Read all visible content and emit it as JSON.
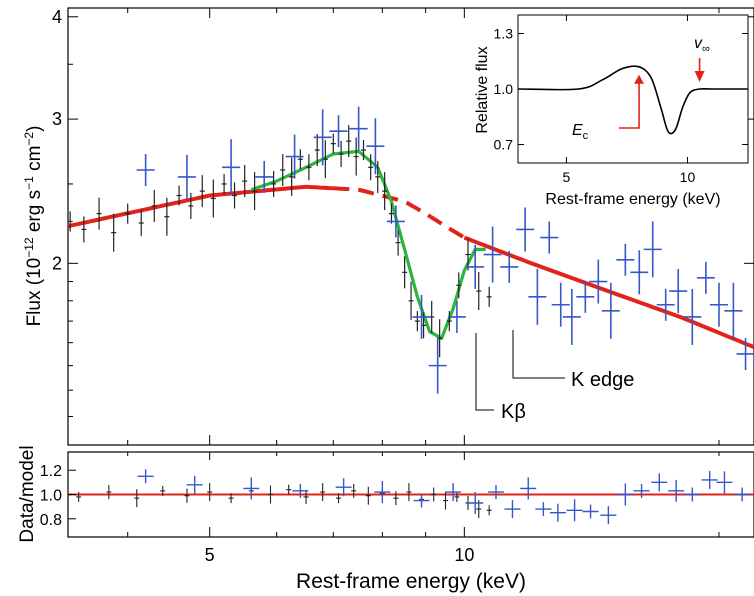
{
  "chart_data": [
    {
      "type": "scatter",
      "role": "main spectrum",
      "xlabel": "Rest-frame energy (keV)",
      "ylabel": "Flux (10",
      "ylabel_sup1": "−12",
      "ylabel_mid": " erg s",
      "ylabel_sup2": "−1",
      "ylabel_mid2": " cm",
      "ylabel_sup3": "−2",
      "ylabel_end": ")",
      "x_scale": "log",
      "y_scale": "log",
      "xlim": [
        3.4,
        22
      ],
      "ylim": [
        1.2,
        4.1
      ],
      "y_ticks": [
        "2",
        "3",
        "4"
      ],
      "grid": false,
      "annotations": {
        "kbeta": "Kβ",
        "kedge": "K edge"
      },
      "colors": {
        "black_data": "#222222",
        "blue_data": "#3557c9",
        "red_model": "#e2231a",
        "green_model": "#2bb53b"
      },
      "series": [
        {
          "marker": "black crosses",
          "points": [
            [
              3.42,
              2.25
            ],
            [
              3.55,
              2.2
            ],
            [
              3.7,
              2.3
            ],
            [
              3.85,
              2.18
            ],
            [
              4.0,
              2.3
            ],
            [
              4.15,
              2.24
            ],
            [
              4.3,
              2.35
            ],
            [
              4.45,
              2.28
            ],
            [
              4.6,
              2.42
            ],
            [
              4.75,
              2.35
            ],
            [
              4.9,
              2.45
            ],
            [
              5.05,
              2.4
            ],
            [
              5.2,
              2.5
            ],
            [
              5.35,
              2.42
            ],
            [
              5.5,
              2.52
            ],
            [
              5.65,
              2.45
            ],
            [
              5.8,
              2.55
            ],
            [
              5.95,
              2.5
            ],
            [
              6.1,
              2.6
            ],
            [
              6.25,
              2.55
            ],
            [
              6.4,
              2.68
            ],
            [
              6.55,
              2.62
            ],
            [
              6.7,
              2.75
            ],
            [
              6.85,
              2.68
            ],
            [
              7.0,
              2.8
            ],
            [
              7.15,
              2.72
            ],
            [
              7.3,
              2.82
            ],
            [
              7.45,
              2.7
            ],
            [
              7.6,
              2.75
            ],
            [
              7.75,
              2.62
            ],
            [
              7.9,
              2.55
            ],
            [
              8.05,
              2.45
            ],
            [
              8.2,
              2.3
            ],
            [
              8.35,
              2.12
            ],
            [
              8.5,
              1.95
            ],
            [
              8.65,
              1.8
            ],
            [
              8.8,
              1.7
            ],
            [
              8.95,
              1.68
            ],
            [
              9.15,
              1.72
            ],
            [
              9.35,
              1.62
            ],
            [
              9.6,
              1.7
            ],
            [
              9.85,
              1.88
            ],
            [
              10.1,
              2.05
            ],
            [
              10.4,
              1.85
            ],
            [
              10.7,
              1.82
            ]
          ]
        },
        {
          "marker": "blue crosses",
          "points": [
            [
              4.2,
              2.6
            ],
            [
              4.7,
              2.55
            ],
            [
              5.3,
              2.62
            ],
            [
              5.8,
              2.55
            ],
            [
              6.3,
              2.7
            ],
            [
              6.8,
              2.85
            ],
            [
              7.1,
              2.9
            ],
            [
              7.5,
              2.92
            ],
            [
              7.85,
              2.78
            ],
            [
              8.3,
              2.25
            ],
            [
              8.9,
              1.72
            ],
            [
              9.3,
              1.5
            ],
            [
              9.8,
              1.72
            ],
            [
              10.3,
              1.98
            ],
            [
              10.8,
              2.05
            ],
            [
              11.3,
              1.98
            ],
            [
              11.8,
              2.2
            ],
            [
              12.2,
              1.82
            ],
            [
              12.6,
              2.15
            ],
            [
              13.0,
              1.78
            ],
            [
              13.4,
              1.72
            ],
            [
              13.9,
              1.82
            ],
            [
              14.4,
              1.9
            ],
            [
              14.9,
              1.75
            ],
            [
              15.5,
              2.02
            ],
            [
              16.1,
              1.95
            ],
            [
              16.7,
              2.08
            ],
            [
              17.3,
              1.78
            ],
            [
              17.9,
              1.85
            ],
            [
              18.6,
              1.72
            ],
            [
              19.3,
              1.92
            ],
            [
              20.0,
              1.78
            ],
            [
              20.8,
              1.75
            ],
            [
              21.5,
              1.55
            ]
          ]
        },
        {
          "name_hidden": "continuum model (solid red, dashed under feature)",
          "x": [
            3.4,
            5.0,
            6.5,
            7.5,
            8.5,
            9.0,
            9.5,
            10.0,
            12.0,
            15.0,
            18.0,
            22.0
          ],
          "y": [
            2.22,
            2.42,
            2.48,
            2.46,
            2.38,
            2.3,
            2.22,
            2.15,
            2.0,
            1.84,
            1.72,
            1.58
          ],
          "dashed_range": [
            7.0,
            10.0
          ]
        },
        {
          "name_hidden": "model with absorption feature (green)",
          "x": [
            5.6,
            6.0,
            6.5,
            7.0,
            7.5,
            7.9,
            8.2,
            8.5,
            8.8,
            9.1,
            9.4,
            9.7,
            10.0,
            10.3,
            10.6
          ],
          "y": [
            2.46,
            2.52,
            2.62,
            2.72,
            2.74,
            2.62,
            2.38,
            2.08,
            1.82,
            1.65,
            1.62,
            1.76,
            1.96,
            2.08,
            2.08
          ]
        }
      ]
    },
    {
      "type": "scatter",
      "role": "ratio panel",
      "xlabel": "Rest-frame energy (keV)",
      "ylabel": "Data/model",
      "x_scale": "log",
      "xlim": [
        3.4,
        22
      ],
      "ylim": [
        0.65,
        1.35
      ],
      "x_ticks": [
        "5",
        "10"
      ],
      "y_ticks": [
        "0.8",
        "1.0",
        "1.2"
      ],
      "reference_line": 1.0,
      "points_black": [
        [
          3.5,
          0.98
        ],
        [
          3.8,
          1.02
        ],
        [
          4.1,
          0.97
        ],
        [
          4.4,
          1.03
        ],
        [
          4.7,
          0.99
        ],
        [
          5.0,
          1.02
        ],
        [
          5.3,
          0.97
        ],
        [
          5.6,
          1.03
        ],
        [
          5.9,
          1.0
        ],
        [
          6.2,
          1.04
        ],
        [
          6.5,
          0.98
        ],
        [
          6.8,
          1.02
        ],
        [
          7.1,
          0.97
        ],
        [
          7.4,
          1.03
        ],
        [
          7.7,
          0.99
        ],
        [
          8.0,
          1.01
        ],
        [
          8.3,
          0.97
        ],
        [
          8.6,
          1.02
        ],
        [
          8.9,
          0.96
        ],
        [
          9.2,
          1.0
        ],
        [
          9.5,
          0.95
        ],
        [
          9.8,
          0.98
        ],
        [
          10.1,
          0.93
        ],
        [
          10.4,
          0.88
        ],
        [
          10.7,
          0.87
        ]
      ],
      "points_blue": [
        [
          4.2,
          1.15
        ],
        [
          4.8,
          1.08
        ],
        [
          5.6,
          1.05
        ],
        [
          6.4,
          1.03
        ],
        [
          7.2,
          1.06
        ],
        [
          8.0,
          1.02
        ],
        [
          8.9,
          0.95
        ],
        [
          9.7,
          1.02
        ],
        [
          10.3,
          0.93
        ],
        [
          10.9,
          1.02
        ],
        [
          11.4,
          0.88
        ],
        [
          11.9,
          1.05
        ],
        [
          12.4,
          0.88
        ],
        [
          12.9,
          0.85
        ],
        [
          13.5,
          0.87
        ],
        [
          14.1,
          0.86
        ],
        [
          14.8,
          0.83
        ],
        [
          15.5,
          1.0
        ],
        [
          16.2,
          1.03
        ],
        [
          17.0,
          1.1
        ],
        [
          17.8,
          1.03
        ],
        [
          18.6,
          1.0
        ],
        [
          19.5,
          1.12
        ],
        [
          20.3,
          1.1
        ],
        [
          21.3,
          1.0
        ]
      ]
    },
    {
      "type": "line",
      "role": "inset profile",
      "xlabel": "Rest-frame energy (keV)",
      "ylabel": "Relative flux",
      "xlim": [
        3,
        12.5
      ],
      "ylim": [
        0.6,
        1.4
      ],
      "x_ticks": [
        "5",
        "10"
      ],
      "y_ticks": [
        "0.7",
        "1.0",
        "1.3"
      ],
      "x": [
        3.0,
        5.5,
        6.5,
        7.3,
        8.0,
        8.5,
        8.9,
        9.2,
        9.5,
        9.8,
        10.1,
        10.5,
        11.0,
        12.5
      ],
      "values": [
        1.0,
        1.0,
        1.05,
        1.11,
        1.12,
        1.06,
        0.9,
        0.77,
        0.78,
        0.9,
        0.98,
        1.0,
        1.0,
        1.0
      ],
      "annotations": {
        "ec_base": "E",
        "ec_sub": "c",
        "vinf_base": "v",
        "vinf_sub": "∞"
      },
      "arrow_ec_x": 8.0,
      "arrow_vinf_x": 10.5
    }
  ]
}
